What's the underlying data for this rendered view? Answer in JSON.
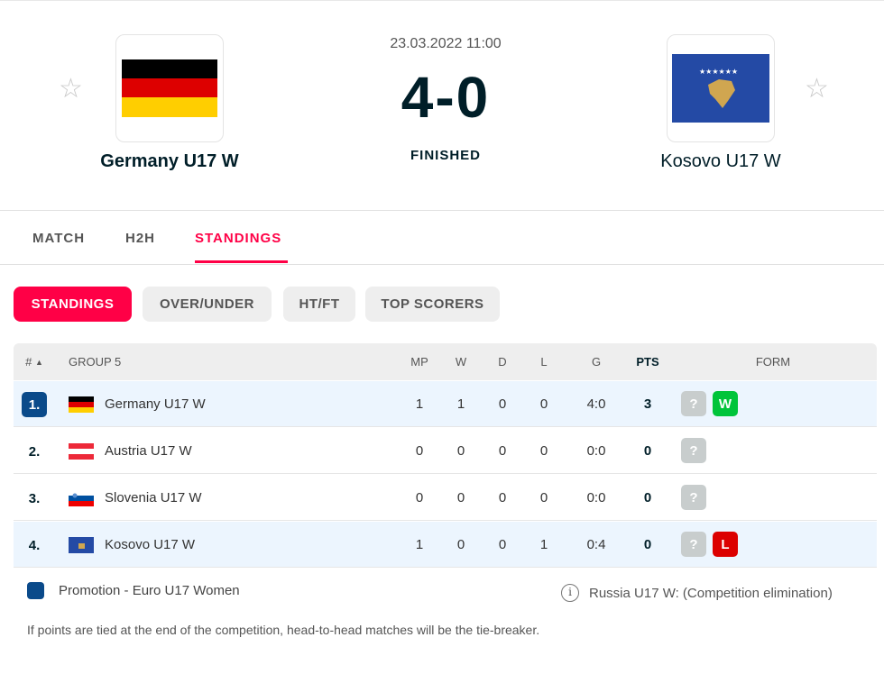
{
  "match": {
    "datetime": "23.03.2022 11:00",
    "score_home": "4",
    "score_sep": "-",
    "score_away": "0",
    "status": "FINISHED",
    "home": {
      "name": "Germany U17 W"
    },
    "away": {
      "name": "Kosovo U17 W"
    }
  },
  "tabs": [
    "MATCH",
    "H2H",
    "STANDINGS"
  ],
  "subtabs": [
    "STANDINGS",
    "OVER/UNDER",
    "HT/FT",
    "TOP SCORERS"
  ],
  "table": {
    "headers": {
      "rank": "#",
      "group": "GROUP 5",
      "mp": "MP",
      "w": "W",
      "d": "D",
      "l": "L",
      "g": "G",
      "pts": "PTS",
      "form": "FORM"
    },
    "rows": [
      {
        "rank": "1.",
        "team": "Germany U17 W",
        "mp": "1",
        "w": "1",
        "d": "0",
        "l": "0",
        "g": "4:0",
        "pts": "3",
        "form": [
          "?",
          "W"
        ]
      },
      {
        "rank": "2.",
        "team": "Austria U17 W",
        "mp": "0",
        "w": "0",
        "d": "0",
        "l": "0",
        "g": "0:0",
        "pts": "0",
        "form": [
          "?"
        ]
      },
      {
        "rank": "3.",
        "team": "Slovenia U17 W",
        "mp": "0",
        "w": "0",
        "d": "0",
        "l": "0",
        "g": "0:0",
        "pts": "0",
        "form": [
          "?"
        ]
      },
      {
        "rank": "4.",
        "team": "Kosovo U17 W",
        "mp": "1",
        "w": "0",
        "d": "0",
        "l": "1",
        "g": "0:4",
        "pts": "0",
        "form": [
          "?",
          "L"
        ]
      }
    ]
  },
  "legend": {
    "promotion": "Promotion - Euro U17 Women",
    "note": "Russia U17 W: (Competition elimination)",
    "tiebreak": "If points are tied at the end of the competition, head-to-head matches will be the tie-breaker."
  },
  "colors": {
    "accent": "#ff0046",
    "promotion": "#0a4a8a",
    "win": "#00c43a",
    "loss": "#dc0000",
    "unknown": "#c8cdcd"
  }
}
